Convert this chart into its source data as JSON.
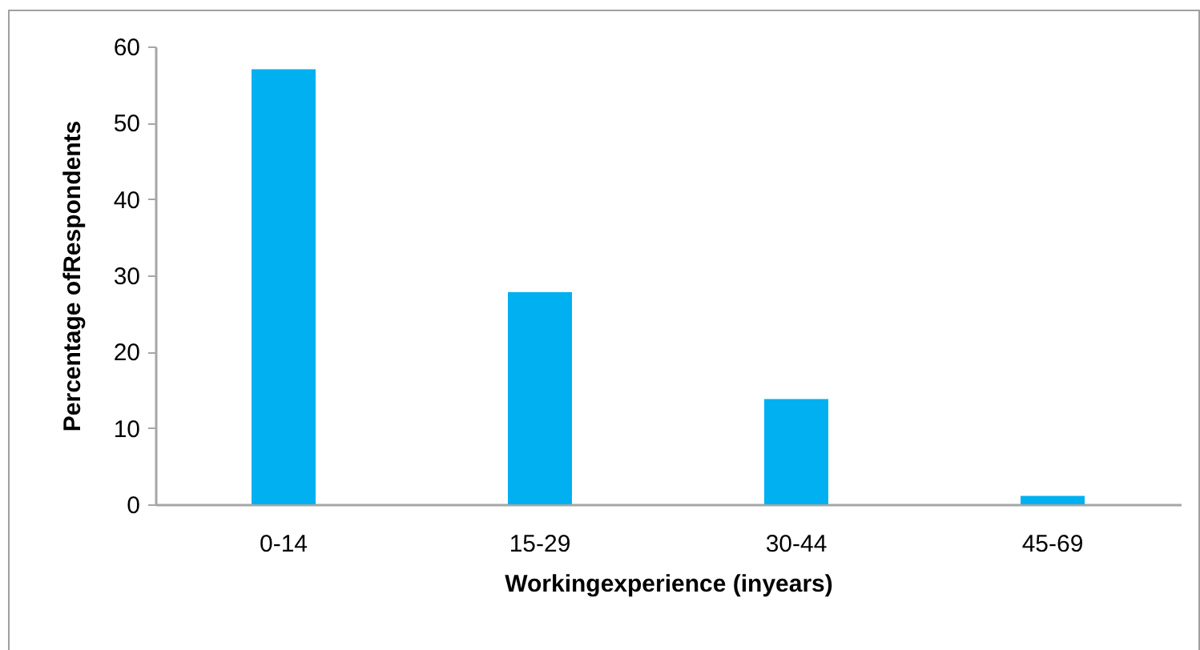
{
  "chart_data": {
    "type": "bar",
    "xlabel": "Workingexperience (inyears)",
    "ylabel": "Percentage ofRespondents",
    "categories": [
      "0-14",
      "15-29",
      "30-44",
      "45-69"
    ],
    "values": [
      57,
      27.8,
      13.8,
      1.1
    ],
    "color": "#00b0f0",
    "ylim": [
      0,
      60
    ],
    "yticks": [
      0,
      10,
      20,
      30,
      40,
      50,
      60
    ],
    "grid": false
  }
}
